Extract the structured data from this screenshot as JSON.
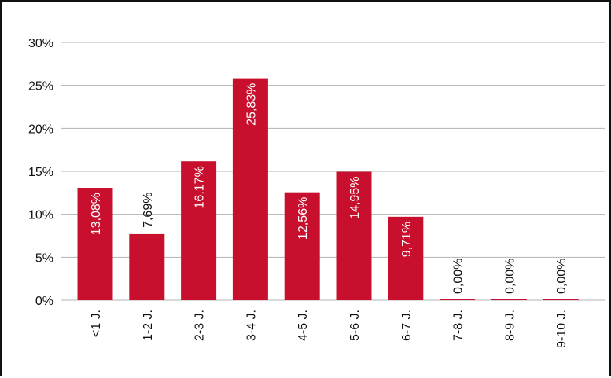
{
  "chart_data": {
    "type": "bar",
    "categories": [
      "<1 J.",
      "1-2 J.",
      "2-3 J.",
      "3-4 J.",
      "4-5 J.",
      "5-6 J.",
      "6-7 J.",
      "7-8 J.",
      "8-9 J.",
      "9-10 J."
    ],
    "values": [
      13.08,
      7.69,
      16.17,
      25.83,
      12.56,
      14.95,
      9.71,
      0.0,
      0.0,
      0.0
    ],
    "data_labels": [
      "13,08%",
      "7,69%",
      "16,17%",
      "25,83%",
      "12,56%",
      "14,95%",
      "9,71%",
      "0,00%",
      "0,00%",
      "0,00%"
    ],
    "title": "",
    "xlabel": "",
    "ylabel": "",
    "ylim": [
      0,
      30
    ],
    "yticks": [
      0,
      5,
      10,
      15,
      20,
      25,
      30
    ],
    "ytick_labels": [
      "0%",
      "5%",
      "10%",
      "15%",
      "20%",
      "25%",
      "30%"
    ],
    "grid": true,
    "legend": "none",
    "colors": {
      "bar": "#c8102e",
      "grid": "#b3b3b3",
      "label_inside": "#ffffff",
      "label_outside": "#111111"
    }
  }
}
